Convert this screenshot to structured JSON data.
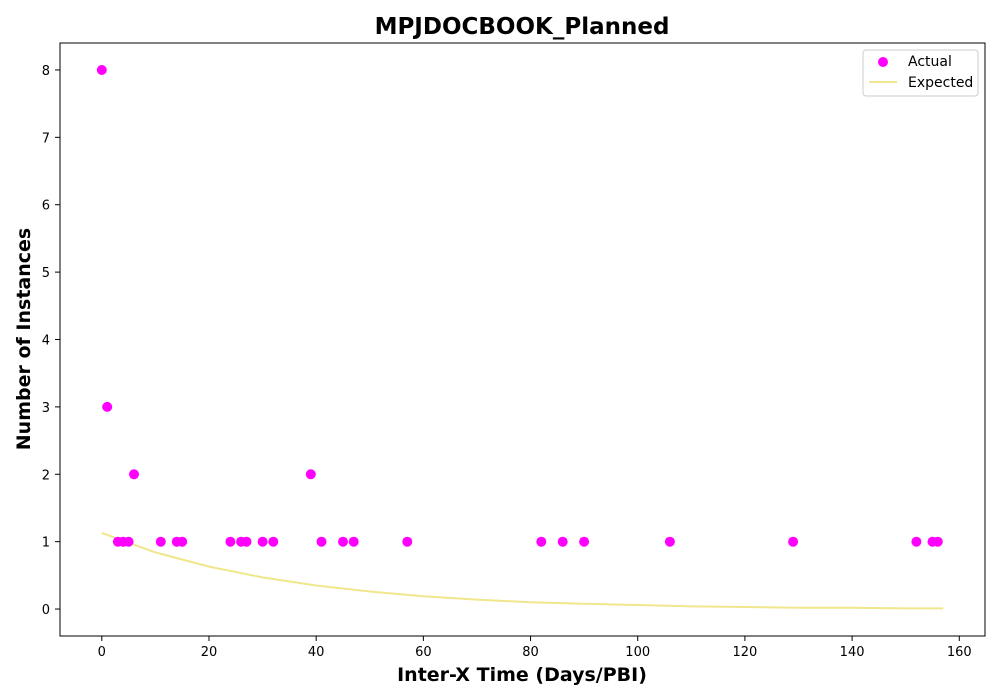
{
  "chart_data": {
    "type": "scatter",
    "title": "MPJDOCBOOK_Planned",
    "xlabel": "Inter-X Time (Days/PBI)",
    "ylabel": "Number of Instances",
    "xlim": [
      -7.8,
      164.8
    ],
    "ylim": [
      -0.4,
      8.4
    ],
    "xticks": [
      0,
      20,
      40,
      60,
      80,
      100,
      120,
      140,
      160
    ],
    "yticks": [
      0,
      1,
      2,
      3,
      4,
      5,
      6,
      7,
      8
    ],
    "grid": false,
    "legend": {
      "placement": "top-right",
      "entries": [
        {
          "label": "Actual",
          "kind": "marker"
        },
        {
          "label": "Expected",
          "kind": "line"
        }
      ]
    },
    "series": [
      {
        "name": "Actual",
        "kind": "scatter",
        "color": "#ff00ff",
        "points": [
          {
            "x": 0,
            "y": 8
          },
          {
            "x": 1,
            "y": 3
          },
          {
            "x": 3,
            "y": 1
          },
          {
            "x": 4,
            "y": 1
          },
          {
            "x": 5,
            "y": 1
          },
          {
            "x": 6,
            "y": 2
          },
          {
            "x": 11,
            "y": 1
          },
          {
            "x": 14,
            "y": 1
          },
          {
            "x": 15,
            "y": 1
          },
          {
            "x": 24,
            "y": 1
          },
          {
            "x": 26,
            "y": 1
          },
          {
            "x": 27,
            "y": 1
          },
          {
            "x": 30,
            "y": 1
          },
          {
            "x": 32,
            "y": 1
          },
          {
            "x": 39,
            "y": 2
          },
          {
            "x": 41,
            "y": 1
          },
          {
            "x": 45,
            "y": 1
          },
          {
            "x": 47,
            "y": 1
          },
          {
            "x": 57,
            "y": 1
          },
          {
            "x": 82,
            "y": 1
          },
          {
            "x": 86,
            "y": 1
          },
          {
            "x": 90,
            "y": 1
          },
          {
            "x": 106,
            "y": 1
          },
          {
            "x": 129,
            "y": 1
          },
          {
            "x": 152,
            "y": 1
          },
          {
            "x": 155,
            "y": 1
          },
          {
            "x": 156,
            "y": 1
          }
        ]
      },
      {
        "name": "Expected",
        "kind": "line",
        "color": "#f0e68c",
        "points": [
          {
            "x": 0,
            "y": 1.13
          },
          {
            "x": 10,
            "y": 0.84
          },
          {
            "x": 20,
            "y": 0.63
          },
          {
            "x": 30,
            "y": 0.47
          },
          {
            "x": 40,
            "y": 0.35
          },
          {
            "x": 50,
            "y": 0.26
          },
          {
            "x": 60,
            "y": 0.19
          },
          {
            "x": 70,
            "y": 0.14
          },
          {
            "x": 80,
            "y": 0.1
          },
          {
            "x": 90,
            "y": 0.08
          },
          {
            "x": 100,
            "y": 0.06
          },
          {
            "x": 110,
            "y": 0.04
          },
          {
            "x": 120,
            "y": 0.03
          },
          {
            "x": 130,
            "y": 0.02
          },
          {
            "x": 140,
            "y": 0.02
          },
          {
            "x": 150,
            "y": 0.01
          },
          {
            "x": 157,
            "y": 0.01
          }
        ]
      }
    ]
  }
}
